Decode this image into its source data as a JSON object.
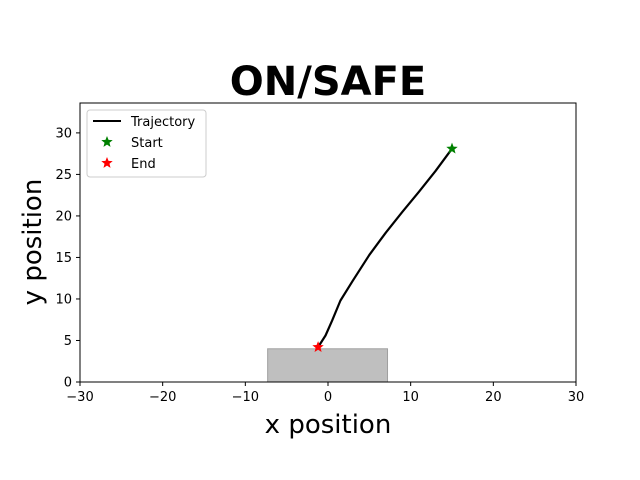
{
  "chart_data": {
    "type": "line",
    "title": "ON/SAFE",
    "xlabel": "x position",
    "ylabel": "y position",
    "xlim": [
      -30,
      30
    ],
    "ylim": [
      0,
      33.6
    ],
    "xticks": [
      -30,
      -20,
      -10,
      0,
      10,
      20,
      30
    ],
    "yticks": [
      0,
      5,
      10,
      15,
      20,
      25,
      30
    ],
    "xtick_labels": [
      "−30",
      "−20",
      "−10",
      "0",
      "10",
      "20",
      "30"
    ],
    "ytick_labels": [
      "0",
      "5",
      "10",
      "15",
      "20",
      "25",
      "30"
    ],
    "grid": false,
    "legend_position": "top-left",
    "series": [
      {
        "name": "Trajectory",
        "color": "#000000",
        "x": [
          15,
          13,
          11,
          9,
          7,
          5,
          3,
          1.5,
          0.5,
          -0.3,
          -1.2
        ],
        "y": [
          28.1,
          25.4,
          22.9,
          20.5,
          18.0,
          15.3,
          12.2,
          9.8,
          7.4,
          5.6,
          4.2
        ]
      }
    ],
    "markers": [
      {
        "name": "Start",
        "x": 15,
        "y": 28.1,
        "color": "#008000",
        "shape": "star"
      },
      {
        "name": "End",
        "x": -1.2,
        "y": 4.2,
        "color": "#ff0000",
        "shape": "star"
      }
    ],
    "regions": [
      {
        "x0": -7.3,
        "x1": 7.2,
        "y0": 0,
        "y1": 4,
        "color": "#bfbfbf"
      }
    ]
  }
}
